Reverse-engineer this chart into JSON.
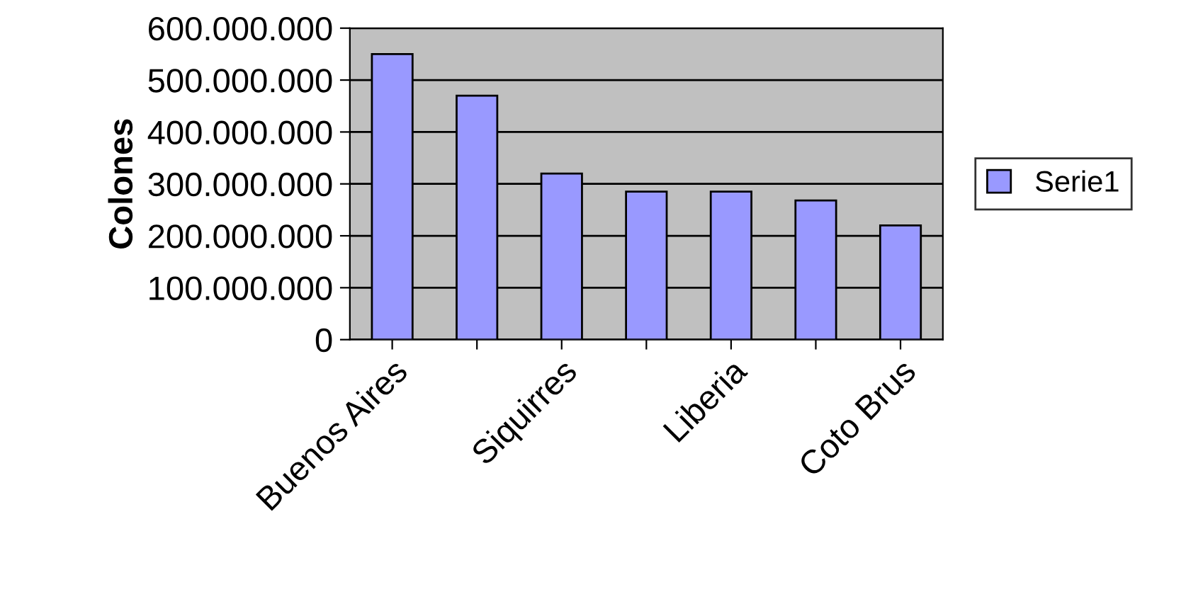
{
  "chart_data": {
    "type": "bar",
    "ylabel": "Colones",
    "categories": [
      "Buenos Aires",
      null,
      "Siquirres",
      null,
      "Liberia",
      null,
      "Coto Brus"
    ],
    "series": [
      {
        "name": "Serie1",
        "color": "#9999ff",
        "values": [
          550000000,
          470000000,
          320000000,
          285000000,
          285000000,
          268000000,
          220000000
        ]
      }
    ],
    "ylim": [
      0,
      600000000
    ],
    "yticks": [
      0,
      {
        "value": 100000000,
        "label": "100.000.000"
      },
      {
        "value": 200000000,
        "label": "200.000.000"
      },
      {
        "value": 300000000,
        "label": "300.000.000"
      },
      {
        "value": 400000000,
        "label": "400.000.000"
      },
      {
        "value": 500000000,
        "label": "500.000.000"
      },
      {
        "value": 600000000,
        "label": "600.000.000"
      }
    ],
    "grid": "y",
    "legend": "right"
  }
}
